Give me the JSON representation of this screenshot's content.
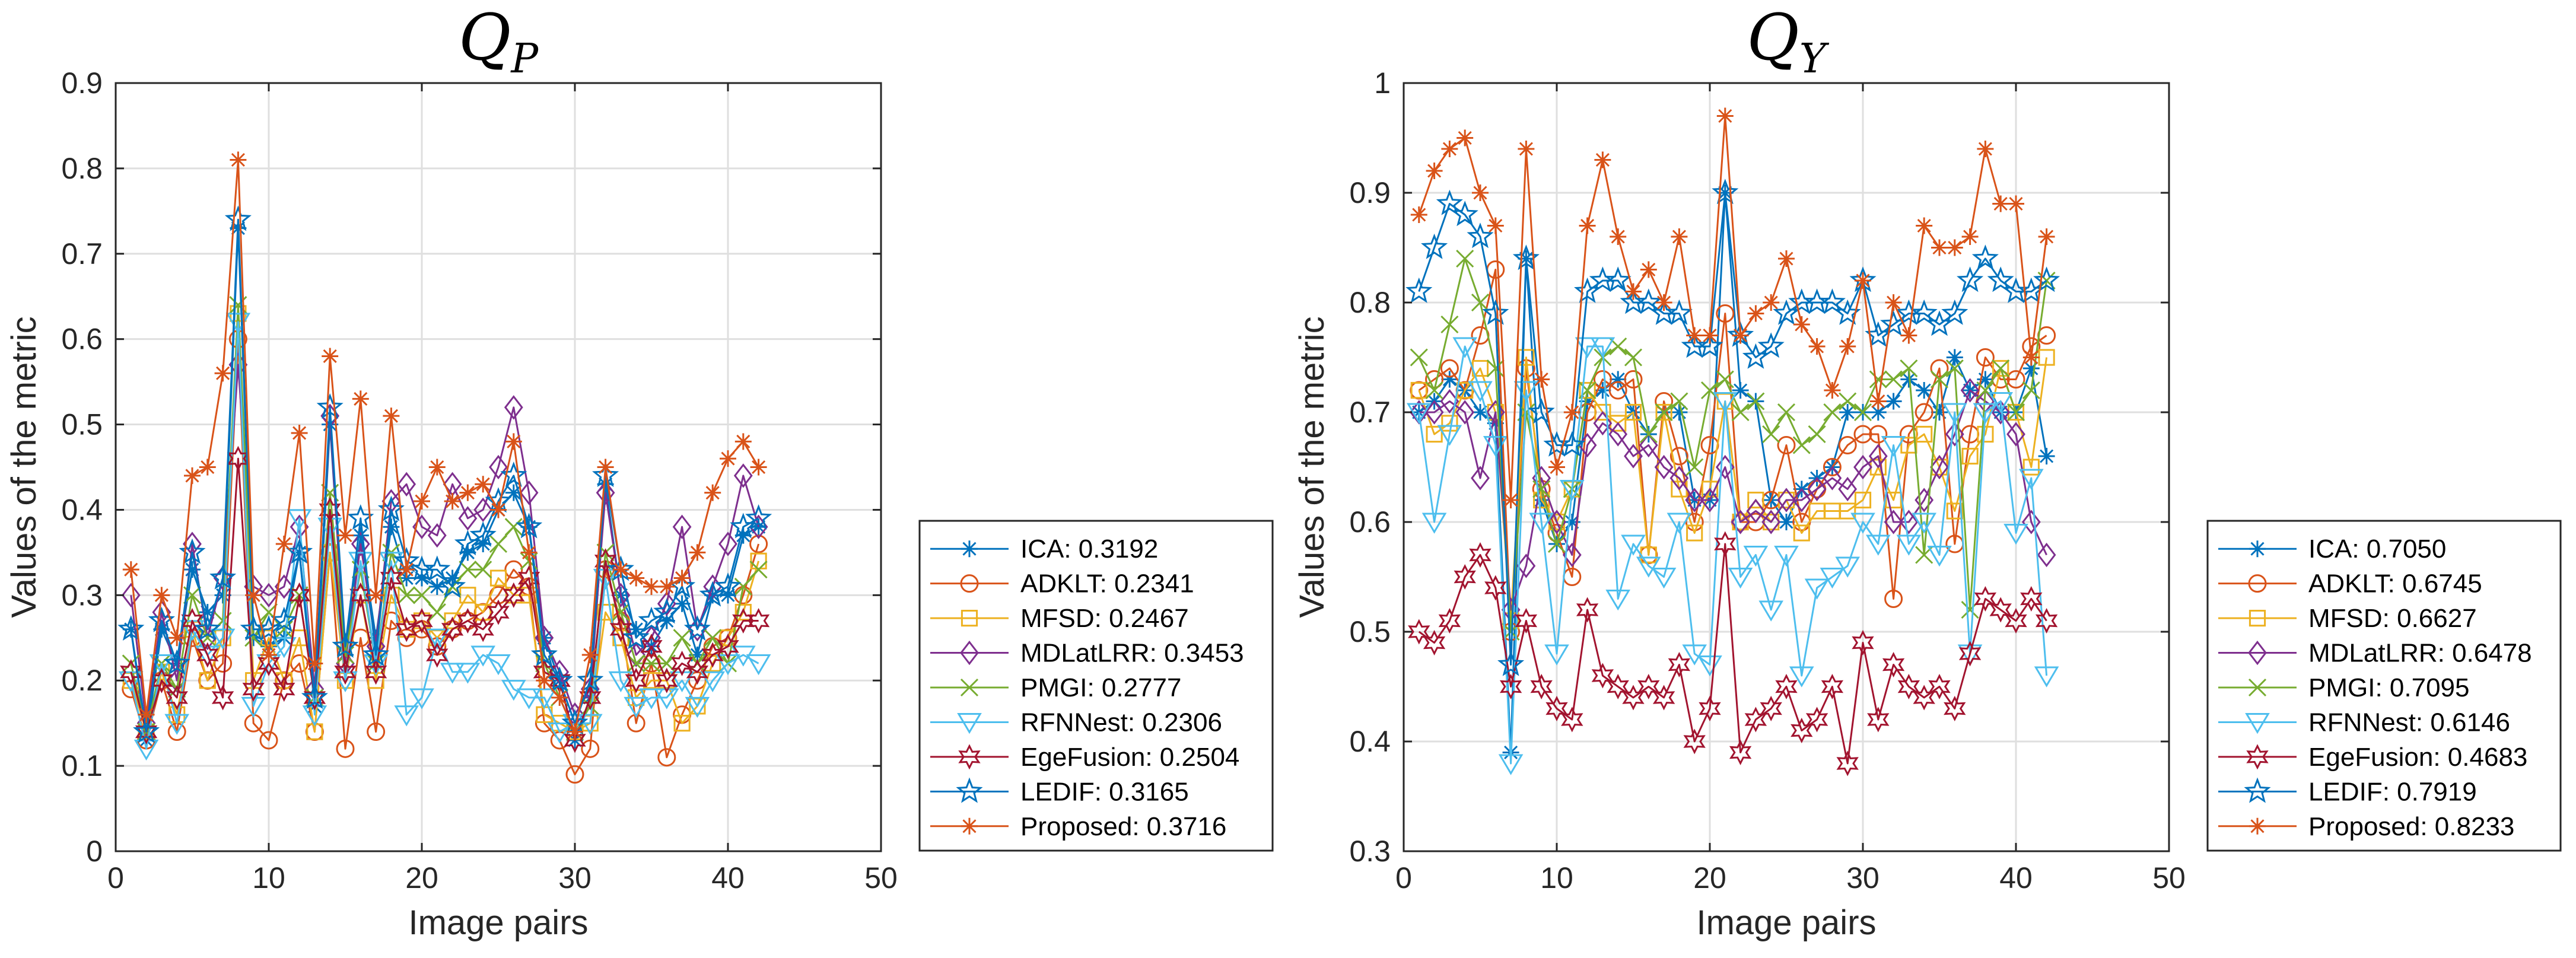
{
  "chart_data": [
    {
      "type": "line",
      "title": "Q",
      "title_sub": "P",
      "xlabel": "Image pairs",
      "ylabel": "Values of the metric",
      "xlim": [
        0,
        50
      ],
      "ylim": [
        0,
        0.9
      ],
      "xticks": [
        "0",
        "10",
        "20",
        "30",
        "40",
        "50"
      ],
      "yticks": [
        "0",
        "0.1",
        "0.2",
        "0.3",
        "0.4",
        "0.5",
        "0.6",
        "0.7",
        "0.8",
        "0.9"
      ],
      "grid": true,
      "legend_position": "outside-right",
      "x": [
        1,
        2,
        3,
        4,
        5,
        6,
        7,
        8,
        9,
        10,
        11,
        12,
        13,
        14,
        15,
        16,
        17,
        18,
        19,
        20,
        21,
        22,
        23,
        24,
        25,
        26,
        27,
        28,
        29,
        30,
        31,
        32,
        33,
        34,
        35,
        36,
        37,
        38,
        39,
        40,
        41,
        42
      ],
      "series": [
        {
          "name": "ICA: 0.3192",
          "color": "#0072BD",
          "marker": "asterisk",
          "values": [
            0.26,
            0.13,
            0.26,
            0.22,
            0.33,
            0.28,
            0.3,
            0.73,
            0.25,
            0.24,
            0.25,
            0.35,
            0.17,
            0.5,
            0.23,
            0.37,
            0.25,
            0.38,
            0.32,
            0.32,
            0.31,
            0.32,
            0.35,
            0.36,
            0.4,
            0.42,
            0.38,
            0.25,
            0.2,
            0.13,
            0.18,
            0.43,
            0.3,
            0.26,
            0.24,
            0.27,
            0.29,
            0.23,
            0.3,
            0.3,
            0.37,
            0.38
          ]
        },
        {
          "name": "ADKLT: 0.2341",
          "color": "#D95319",
          "marker": "circle",
          "values": [
            0.19,
            0.13,
            0.2,
            0.14,
            0.25,
            0.2,
            0.22,
            0.6,
            0.15,
            0.13,
            0.2,
            0.22,
            0.14,
            0.35,
            0.12,
            0.25,
            0.14,
            0.27,
            0.25,
            0.26,
            0.24,
            0.26,
            0.27,
            0.28,
            0.3,
            0.33,
            0.31,
            0.15,
            0.13,
            0.09,
            0.12,
            0.33,
            0.27,
            0.15,
            0.22,
            0.11,
            0.16,
            0.2,
            0.24,
            0.25,
            0.3,
            0.36
          ]
        },
        {
          "name": "MFSD: 0.2467",
          "color": "#EDB120",
          "marker": "square",
          "values": [
            0.2,
            0.14,
            0.21,
            0.16,
            0.26,
            0.2,
            0.25,
            0.63,
            0.2,
            0.25,
            0.2,
            0.25,
            0.14,
            0.35,
            0.2,
            0.3,
            0.2,
            0.3,
            0.26,
            0.27,
            0.25,
            0.27,
            0.3,
            0.28,
            0.32,
            0.3,
            0.3,
            0.16,
            0.15,
            0.14,
            0.15,
            0.28,
            0.25,
            0.18,
            0.2,
            0.2,
            0.15,
            0.17,
            0.22,
            0.25,
            0.28,
            0.34
          ]
        },
        {
          "name": "MDLatLRR: 0.3453",
          "color": "#7E2F8E",
          "marker": "diamond",
          "values": [
            0.3,
            0.15,
            0.28,
            0.2,
            0.36,
            0.25,
            0.32,
            0.57,
            0.31,
            0.3,
            0.31,
            0.38,
            0.19,
            0.51,
            0.22,
            0.36,
            0.24,
            0.41,
            0.43,
            0.38,
            0.37,
            0.43,
            0.39,
            0.4,
            0.45,
            0.52,
            0.42,
            0.25,
            0.21,
            0.16,
            0.19,
            0.42,
            0.3,
            0.23,
            0.25,
            0.29,
            0.38,
            0.26,
            0.31,
            0.36,
            0.44,
            0.38
          ]
        },
        {
          "name": "PMGI: 0.2777",
          "color": "#77AC30",
          "marker": "x",
          "values": [
            0.22,
            0.14,
            0.22,
            0.19,
            0.3,
            0.25,
            0.27,
            0.64,
            0.25,
            0.28,
            0.26,
            0.3,
            0.18,
            0.42,
            0.23,
            0.33,
            0.22,
            0.35,
            0.3,
            0.3,
            0.28,
            0.31,
            0.33,
            0.33,
            0.36,
            0.38,
            0.34,
            0.22,
            0.18,
            0.14,
            0.17,
            0.35,
            0.28,
            0.22,
            0.22,
            0.22,
            0.25,
            0.22,
            0.25,
            0.22,
            0.31,
            0.33
          ]
        },
        {
          "name": "RFNNest: 0.2306",
          "color": "#4DBEEE",
          "marker": "triangle-down",
          "values": [
            0.2,
            0.12,
            0.22,
            0.15,
            0.26,
            0.23,
            0.25,
            0.62,
            0.17,
            0.22,
            0.24,
            0.39,
            0.16,
            0.38,
            0.2,
            0.34,
            0.22,
            0.34,
            0.16,
            0.18,
            0.25,
            0.21,
            0.21,
            0.23,
            0.22,
            0.19,
            0.18,
            0.18,
            0.14,
            0.15,
            0.15,
            0.32,
            0.2,
            0.17,
            0.18,
            0.18,
            0.2,
            0.17,
            0.2,
            0.22,
            0.23,
            0.22
          ]
        },
        {
          "name": "EgeFusion: 0.2504",
          "color": "#A2142F",
          "marker": "hexagram",
          "values": [
            0.21,
            0.14,
            0.2,
            0.18,
            0.27,
            0.23,
            0.18,
            0.46,
            0.19,
            0.22,
            0.19,
            0.3,
            0.18,
            0.4,
            0.21,
            0.3,
            0.21,
            0.32,
            0.26,
            0.27,
            0.23,
            0.26,
            0.27,
            0.26,
            0.28,
            0.3,
            0.32,
            0.21,
            0.2,
            0.13,
            0.18,
            0.34,
            0.26,
            0.2,
            0.24,
            0.2,
            0.22,
            0.21,
            0.23,
            0.24,
            0.27,
            0.27
          ]
        },
        {
          "name": "LEDIF: 0.3165",
          "color": "#0072BD",
          "marker": "pentagram",
          "values": [
            0.26,
            0.14,
            0.27,
            0.22,
            0.35,
            0.26,
            0.32,
            0.74,
            0.26,
            0.26,
            0.27,
            0.35,
            0.18,
            0.52,
            0.24,
            0.39,
            0.23,
            0.4,
            0.34,
            0.33,
            0.33,
            0.31,
            0.36,
            0.37,
            0.41,
            0.44,
            0.38,
            0.23,
            0.2,
            0.15,
            0.2,
            0.44,
            0.33,
            0.25,
            0.27,
            0.28,
            0.31,
            0.26,
            0.3,
            0.31,
            0.38,
            0.39
          ]
        },
        {
          "name": "Proposed: 0.3716",
          "color": "#D95319",
          "marker": "asterisk",
          "values": [
            0.33,
            0.16,
            0.3,
            0.25,
            0.44,
            0.45,
            0.56,
            0.81,
            0.3,
            0.23,
            0.36,
            0.49,
            0.22,
            0.58,
            0.37,
            0.53,
            0.3,
            0.51,
            0.33,
            0.41,
            0.45,
            0.41,
            0.42,
            0.43,
            0.4,
            0.48,
            0.35,
            0.2,
            0.18,
            0.14,
            0.23,
            0.45,
            0.33,
            0.32,
            0.31,
            0.31,
            0.32,
            0.35,
            0.42,
            0.46,
            0.48,
            0.45
          ]
        }
      ]
    },
    {
      "type": "line",
      "title": "Q",
      "title_sub": "Y",
      "xlabel": "Image pairs",
      "ylabel": "Values of the metric",
      "xlim": [
        0,
        50
      ],
      "ylim": [
        0.3,
        1
      ],
      "xticks": [
        "0",
        "10",
        "20",
        "30",
        "40",
        "50"
      ],
      "yticks": [
        "0.3",
        "0.4",
        "0.5",
        "0.6",
        "0.7",
        "0.8",
        "0.9",
        "1"
      ],
      "grid": true,
      "legend_position": "outside-right",
      "x": [
        1,
        2,
        3,
        4,
        5,
        6,
        7,
        8,
        9,
        10,
        11,
        12,
        13,
        14,
        15,
        16,
        17,
        18,
        19,
        20,
        21,
        22,
        23,
        24,
        25,
        26,
        27,
        28,
        29,
        30,
        31,
        32,
        33,
        34,
        35,
        36,
        37,
        38,
        39,
        40,
        41,
        42
      ],
      "series": [
        {
          "name": "ICA: 0.7050",
          "color": "#0072BD",
          "marker": "asterisk",
          "values": [
            0.7,
            0.71,
            0.73,
            0.72,
            0.7,
            0.69,
            0.39,
            0.84,
            0.62,
            0.58,
            0.6,
            0.71,
            0.72,
            0.73,
            0.7,
            0.68,
            0.7,
            0.7,
            0.62,
            0.62,
            0.9,
            0.72,
            0.71,
            0.62,
            0.6,
            0.63,
            0.64,
            0.65,
            0.7,
            0.7,
            0.7,
            0.71,
            0.73,
            0.72,
            0.7,
            0.75,
            0.72,
            0.73,
            0.7,
            0.7,
            0.74,
            0.66
          ]
        },
        {
          "name": "ADKLT: 0.6745",
          "color": "#D95319",
          "marker": "circle",
          "values": [
            0.72,
            0.73,
            0.74,
            0.72,
            0.77,
            0.83,
            0.5,
            0.74,
            0.63,
            0.59,
            0.55,
            0.7,
            0.73,
            0.72,
            0.73,
            0.57,
            0.71,
            0.66,
            0.6,
            0.67,
            0.79,
            0.6,
            0.6,
            0.62,
            0.67,
            0.6,
            0.63,
            0.65,
            0.67,
            0.68,
            0.68,
            0.53,
            0.68,
            0.7,
            0.74,
            0.58,
            0.68,
            0.75,
            0.73,
            0.73,
            0.76,
            0.77
          ]
        },
        {
          "name": "MFSD: 0.6627",
          "color": "#EDB120",
          "marker": "square",
          "values": [
            0.72,
            0.68,
            0.69,
            0.72,
            0.74,
            0.7,
            0.51,
            0.75,
            0.62,
            0.6,
            0.63,
            0.72,
            0.7,
            0.69,
            0.7,
            0.57,
            0.7,
            0.63,
            0.59,
            0.63,
            0.71,
            0.6,
            0.62,
            0.6,
            0.62,
            0.59,
            0.61,
            0.61,
            0.61,
            0.62,
            0.65,
            0.62,
            0.67,
            0.68,
            0.65,
            0.61,
            0.66,
            0.68,
            0.74,
            0.7,
            0.65,
            0.75
          ]
        },
        {
          "name": "MDLatLRR: 0.6478",
          "color": "#7E2F8E",
          "marker": "diamond",
          "values": [
            0.7,
            0.7,
            0.71,
            0.7,
            0.64,
            0.7,
            0.52,
            0.56,
            0.64,
            0.6,
            0.57,
            0.67,
            0.69,
            0.68,
            0.66,
            0.67,
            0.65,
            0.64,
            0.62,
            0.62,
            0.65,
            0.6,
            0.61,
            0.6,
            0.62,
            0.62,
            0.63,
            0.64,
            0.63,
            0.65,
            0.66,
            0.6,
            0.6,
            0.62,
            0.65,
            0.68,
            0.72,
            0.71,
            0.7,
            0.68,
            0.6,
            0.57
          ]
        },
        {
          "name": "PMGI: 0.7095",
          "color": "#77AC30",
          "marker": "x",
          "values": [
            0.75,
            0.72,
            0.78,
            0.84,
            0.8,
            0.74,
            0.5,
            0.7,
            0.63,
            0.58,
            0.63,
            0.72,
            0.75,
            0.76,
            0.75,
            0.68,
            0.7,
            0.71,
            0.65,
            0.72,
            0.73,
            0.7,
            0.71,
            0.68,
            0.7,
            0.67,
            0.68,
            0.7,
            0.71,
            0.7,
            0.73,
            0.73,
            0.74,
            0.57,
            0.73,
            0.74,
            0.52,
            0.72,
            0.74,
            0.7,
            0.72,
            0.82
          ]
        },
        {
          "name": "RFNNest: 0.6146",
          "color": "#4DBEEE",
          "marker": "triangle-down",
          "values": [
            0.7,
            0.6,
            0.68,
            0.76,
            0.72,
            0.67,
            0.38,
            0.72,
            0.6,
            0.48,
            0.63,
            0.76,
            0.76,
            0.53,
            0.58,
            0.56,
            0.55,
            0.6,
            0.48,
            0.47,
            0.71,
            0.55,
            0.57,
            0.52,
            0.57,
            0.46,
            0.54,
            0.55,
            0.56,
            0.6,
            0.58,
            0.67,
            0.58,
            0.6,
            0.57,
            0.7,
            0.48,
            0.7,
            0.71,
            0.59,
            0.64,
            0.46
          ]
        },
        {
          "name": "EgeFusion: 0.4683",
          "color": "#A2142F",
          "marker": "hexagram",
          "values": [
            0.5,
            0.49,
            0.51,
            0.55,
            0.57,
            0.54,
            0.45,
            0.51,
            0.45,
            0.43,
            0.42,
            0.52,
            0.46,
            0.45,
            0.44,
            0.45,
            0.44,
            0.47,
            0.4,
            0.43,
            0.58,
            0.39,
            0.42,
            0.43,
            0.45,
            0.41,
            0.42,
            0.45,
            0.38,
            0.49,
            0.42,
            0.47,
            0.45,
            0.44,
            0.45,
            0.43,
            0.48,
            0.53,
            0.52,
            0.51,
            0.53,
            0.51
          ]
        },
        {
          "name": "LEDIF: 0.7919",
          "color": "#0072BD",
          "marker": "pentagram",
          "values": [
            0.81,
            0.85,
            0.89,
            0.88,
            0.86,
            0.79,
            0.47,
            0.84,
            0.7,
            0.67,
            0.67,
            0.81,
            0.82,
            0.82,
            0.8,
            0.8,
            0.79,
            0.79,
            0.76,
            0.76,
            0.9,
            0.77,
            0.75,
            0.76,
            0.79,
            0.8,
            0.8,
            0.8,
            0.79,
            0.82,
            0.77,
            0.78,
            0.79,
            0.79,
            0.78,
            0.79,
            0.82,
            0.84,
            0.82,
            0.81,
            0.81,
            0.82
          ]
        },
        {
          "name": "Proposed: 0.8233",
          "color": "#D95319",
          "marker": "asterisk",
          "values": [
            0.88,
            0.92,
            0.94,
            0.95,
            0.9,
            0.87,
            0.62,
            0.94,
            0.73,
            0.65,
            0.7,
            0.87,
            0.93,
            0.86,
            0.81,
            0.83,
            0.8,
            0.86,
            0.77,
            0.77,
            0.97,
            0.77,
            0.79,
            0.8,
            0.84,
            0.78,
            0.76,
            0.72,
            0.76,
            0.82,
            0.71,
            0.8,
            0.77,
            0.87,
            0.85,
            0.85,
            0.86,
            0.94,
            0.89,
            0.89,
            0.75,
            0.86
          ]
        }
      ]
    }
  ]
}
